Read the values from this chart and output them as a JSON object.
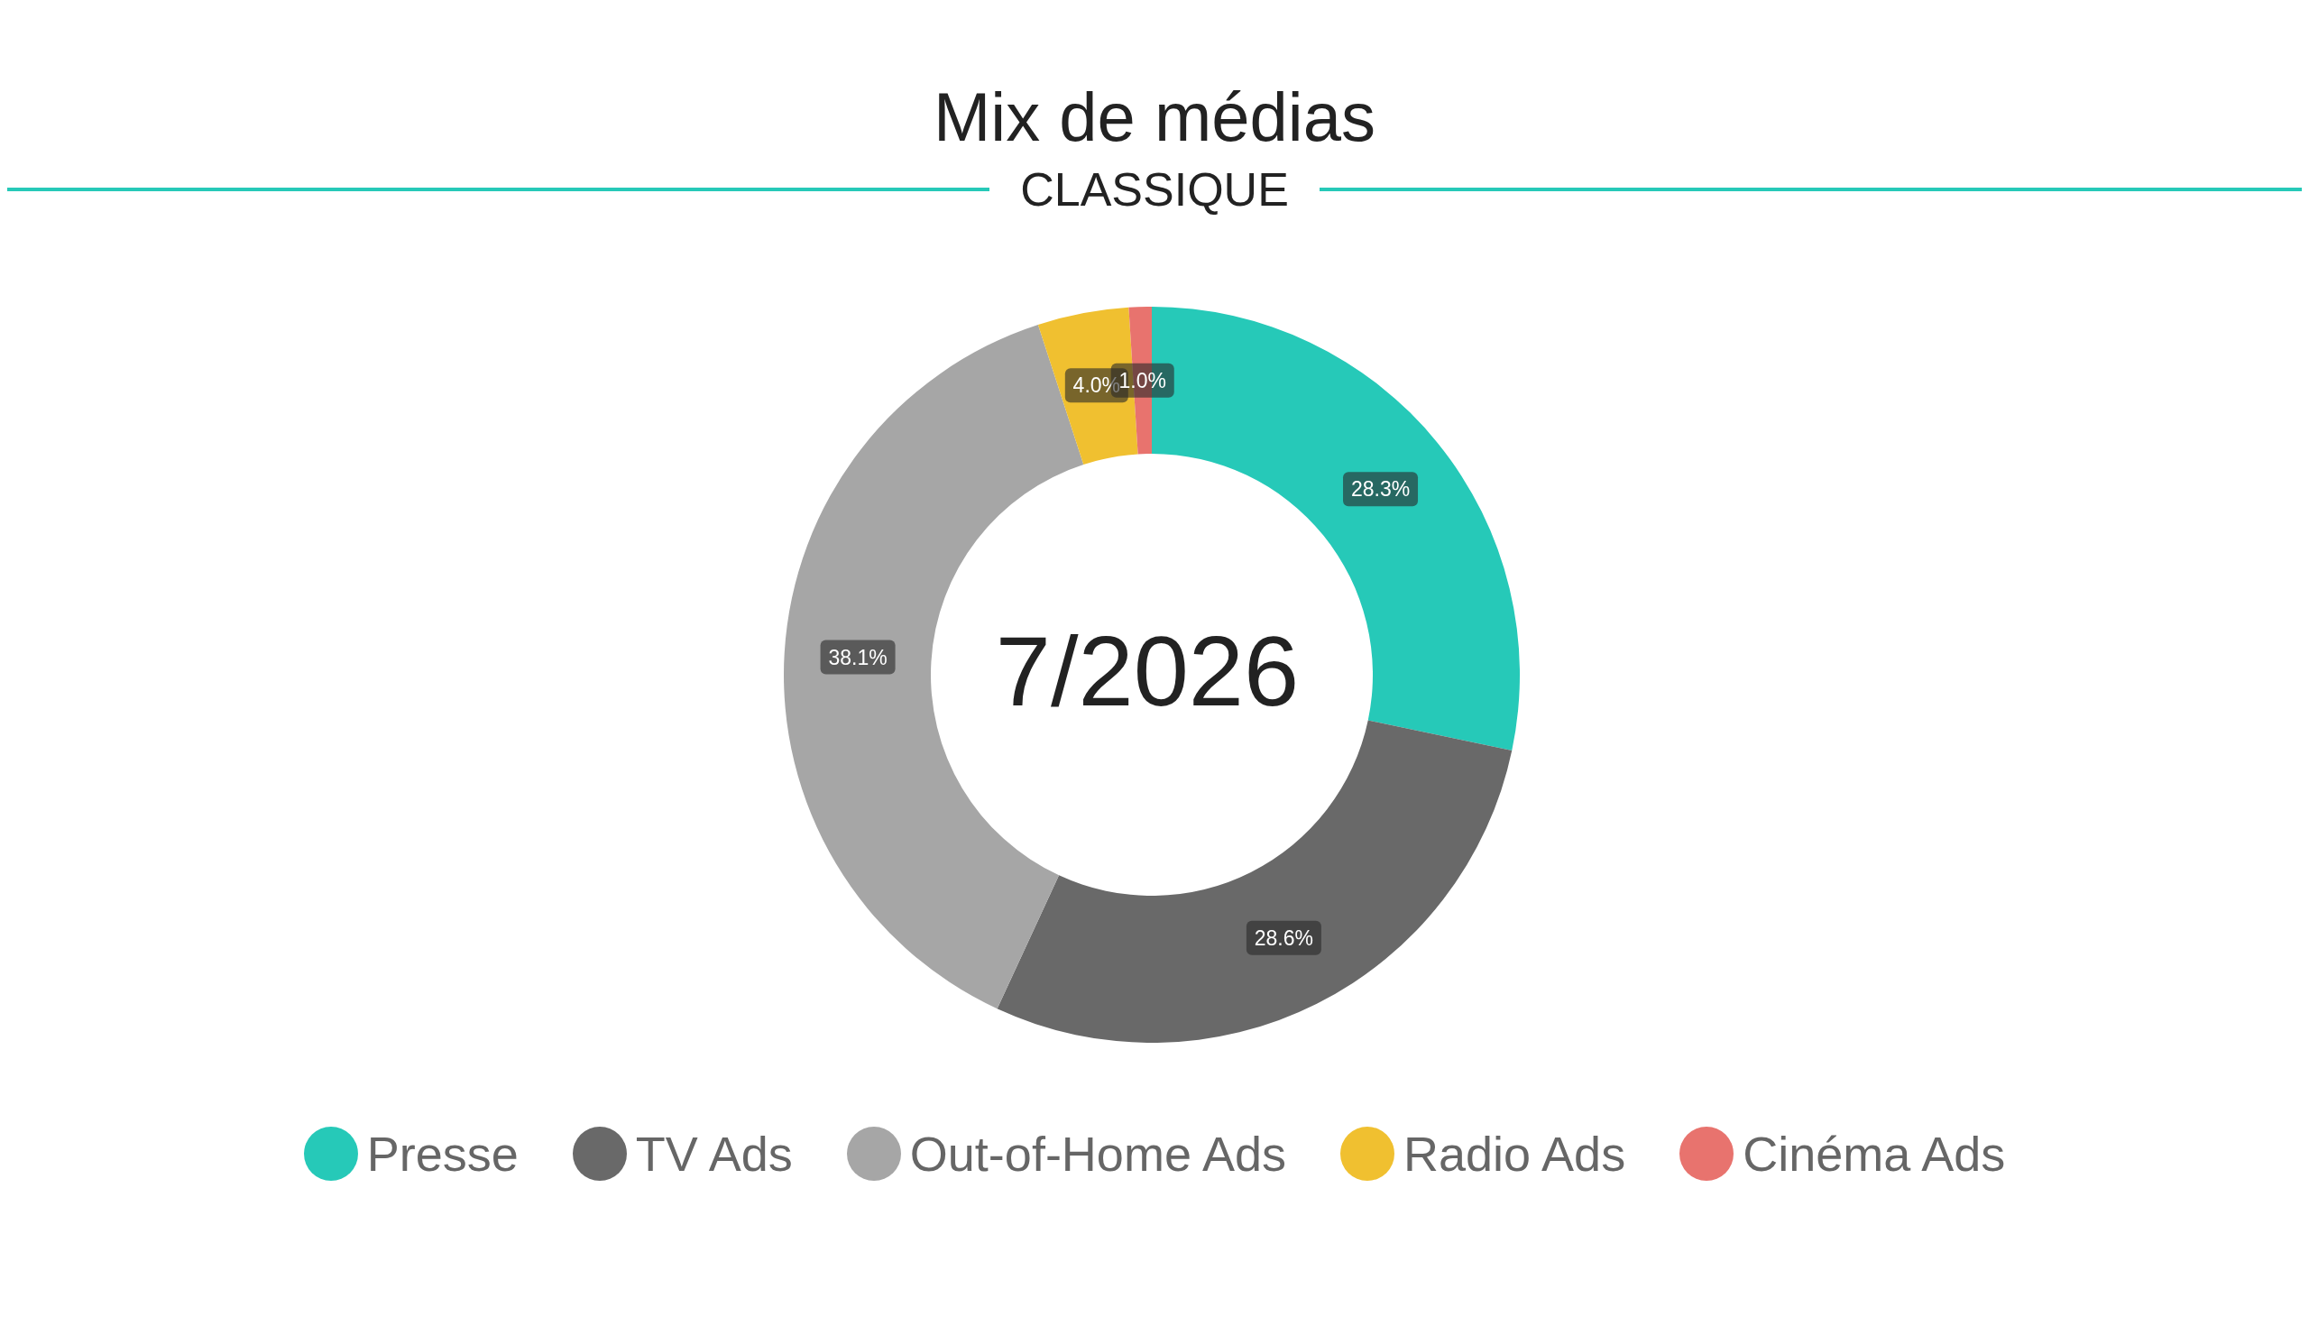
{
  "chart_data": {
    "type": "donut",
    "title": "Mix de médias",
    "subtitle": "CLASSIQUE",
    "categories": [
      "Presse",
      "TV Ads",
      "Out-of-Home Ads",
      "Radio Ads",
      "Cinéma Ads"
    ],
    "values": [
      28.3,
      28.6,
      38.1,
      4.0,
      1.0
    ],
    "value_labels": [
      "28.3%",
      "28.6%",
      "38.1%",
      "4.0%",
      "1.0%"
    ],
    "colors": [
      "#26c9b8",
      "#696969",
      "#a6a6a6",
      "#f0c030",
      "#e8736e"
    ],
    "annotations": [
      "7/2026"
    ],
    "legend": "bottom"
  }
}
